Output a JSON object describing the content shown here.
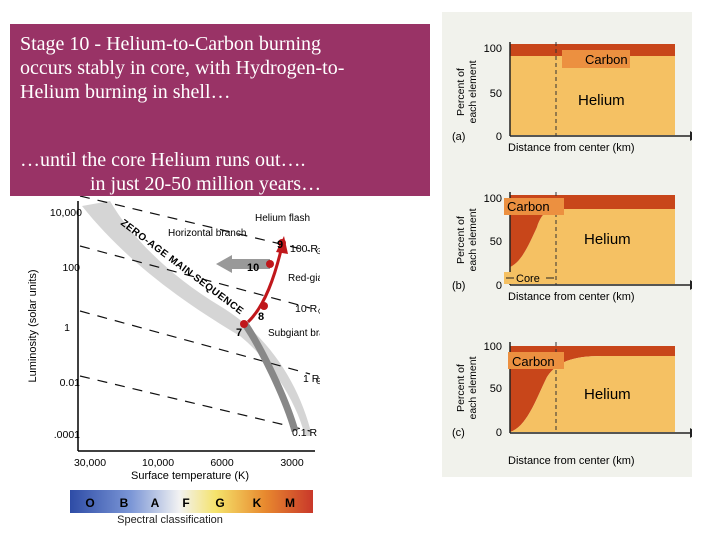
{
  "slide": {
    "title_lines": [
      "Stage 10 -  Helium-to-Carbon burning",
      "occurs stably in core,  with Hydrogen-to-",
      "Helium burning in shell…"
    ],
    "subtitle_lines": [
      "…until the core Helium runs out….",
      "in just 20-50 million years…"
    ],
    "title_bg": "#993366"
  },
  "hr_diagram": {
    "y_axis_label": "Luminosity (solar units)",
    "x_axis_label": "Surface temperature (K)",
    "y_ticks": [
      "10,000",
      "100",
      "1",
      "0.01",
      ".0001"
    ],
    "x_ticks": [
      "30,000",
      "10,000",
      "6000",
      "3000"
    ],
    "main_sequence_label": "ZERO-AGE MAIN SEQUENCE",
    "radius_labels": [
      "100 R",
      "10 R",
      "1 R",
      "0.1 R"
    ],
    "solar_symbol": "⊙",
    "annotations": [
      "Helium flash",
      "Horizontal branch",
      "Red-giant branch",
      "Subgiant branch"
    ],
    "stage_numbers": [
      "7",
      "8",
      "9",
      "10"
    ],
    "spectral_classes": [
      "O",
      "B",
      "A",
      "F",
      "G",
      "K",
      "M"
    ],
    "spectral_label": "Spectral classification"
  },
  "composition_panels": {
    "y_axis_label_1": "Percent of",
    "y_axis_label_2": "each element",
    "y_ticks": [
      "100",
      "50",
      "0"
    ],
    "x_axis_label": "Distance from center (km)",
    "core_label": "Core",
    "panels": [
      {
        "tag": "(a)",
        "top_label": "Carbon",
        "bottom_label": "Helium"
      },
      {
        "tag": "(b)",
        "top_label": "Carbon",
        "bottom_label": "Helium"
      },
      {
        "tag": "(c)",
        "top_label": "Carbon",
        "bottom_label": "Helium"
      }
    ],
    "colors": {
      "carbon": "#c8461a",
      "helium": "#f5c163",
      "background": "#f1f2ec"
    }
  }
}
